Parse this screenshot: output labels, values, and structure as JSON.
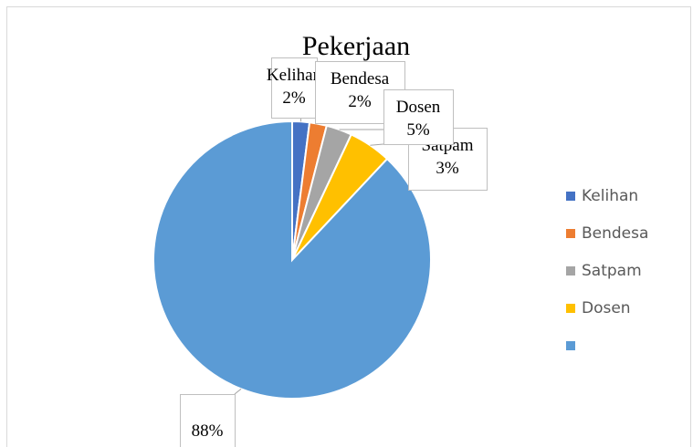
{
  "chart_data": {
    "type": "pie",
    "title": "Pekerjaan",
    "categories": [
      "Kelihan",
      "Bendesa",
      "Satpam",
      "Dosen",
      null
    ],
    "values": [
      2,
      2,
      3,
      5,
      88
    ],
    "value_labels": [
      "2%",
      "2%",
      "3%",
      "5%",
      "88%"
    ],
    "colors": [
      "#4472c4",
      "#ed7d31",
      "#a5a5a5",
      "#ffc000",
      "#5b9bd5"
    ],
    "legend": "right"
  }
}
